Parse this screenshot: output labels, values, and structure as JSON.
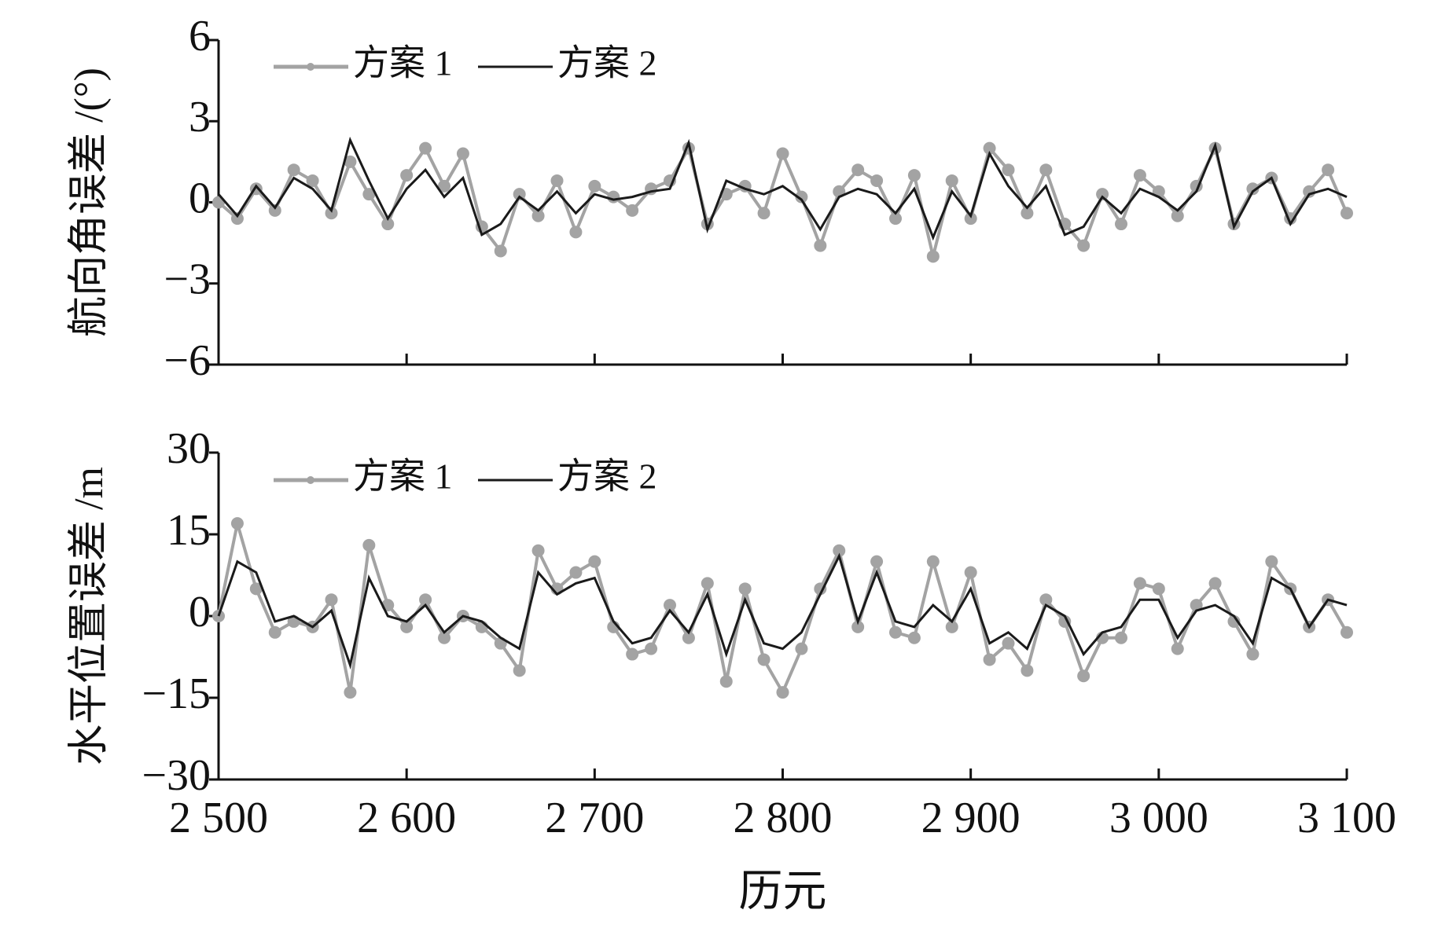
{
  "chart_data": [
    {
      "type": "line",
      "ylabel": "航向角误差 /(°)",
      "x": [
        2500,
        2510,
        2520,
        2530,
        2540,
        2550,
        2560,
        2570,
        2580,
        2590,
        2600,
        2610,
        2620,
        2630,
        2640,
        2650,
        2660,
        2670,
        2680,
        2690,
        2700,
        2710,
        2720,
        2730,
        2740,
        2750,
        2760,
        2770,
        2780,
        2790,
        2800,
        2810,
        2820,
        2830,
        2840,
        2850,
        2860,
        2870,
        2880,
        2890,
        2900,
        2910,
        2920,
        2930,
        2940,
        2950,
        2960,
        2970,
        2980,
        2990,
        3000,
        3010,
        3020,
        3030,
        3040,
        3050,
        3060,
        3070,
        3080,
        3090,
        3100
      ],
      "series": [
        {
          "name": "方案 1",
          "color": "#a3a3a3",
          "marker": true,
          "values": [
            0,
            -0.6,
            0.5,
            -0.3,
            1.2,
            0.8,
            -0.4,
            1.5,
            0.3,
            -0.8,
            1.0,
            2.0,
            0.6,
            1.8,
            -0.9,
            -1.8,
            0.3,
            -0.5,
            0.8,
            -1.1,
            0.6,
            0.2,
            -0.3,
            0.5,
            0.8,
            2.0,
            -0.8,
            0.3,
            0.6,
            -0.4,
            1.8,
            0.2,
            -1.6,
            0.4,
            1.2,
            0.8,
            -0.6,
            1.0,
            -2.0,
            0.8,
            -0.6,
            2.0,
            1.2,
            -0.4,
            1.2,
            -0.8,
            -1.6,
            0.3,
            -0.8,
            1.0,
            0.4,
            -0.5,
            0.6,
            2.0,
            -0.8,
            0.5,
            0.9,
            -0.6,
            0.4,
            1.2,
            -0.4
          ]
        },
        {
          "name": "方案 2",
          "color": "#1a1a1a",
          "marker": false,
          "values": [
            0.3,
            -0.5,
            0.6,
            -0.2,
            0.9,
            0.5,
            -0.3,
            2.3,
            0.8,
            -0.6,
            0.5,
            1.2,
            0.2,
            0.9,
            -1.2,
            -0.8,
            0.2,
            -0.3,
            0.4,
            -0.4,
            0.3,
            0.1,
            0.2,
            0.4,
            0.5,
            2.2,
            -1.0,
            0.8,
            0.5,
            0.3,
            0.6,
            0.1,
            -1.0,
            0.2,
            0.5,
            0.3,
            -0.4,
            0.5,
            -1.3,
            0.4,
            -0.5,
            1.8,
            0.6,
            -0.2,
            0.6,
            -1.2,
            -0.9,
            0.2,
            -0.4,
            0.5,
            0.2,
            -0.3,
            0.4,
            2.1,
            -0.9,
            0.4,
            0.9,
            -0.8,
            0.3,
            0.5,
            0.2
          ]
        }
      ],
      "xlim": [
        2500,
        3100
      ],
      "xticks": [
        2500,
        2600,
        2700,
        2800,
        2900,
        3000,
        3100
      ],
      "ylim": [
        -6,
        6
      ],
      "yticks": [
        {
          "value": -6,
          "label": "−6"
        },
        {
          "value": -3,
          "label": "−3"
        },
        0,
        3,
        6
      ],
      "legend": "upper left"
    },
    {
      "type": "line",
      "ylabel": "水平位置误差 /m",
      "xlabel": "历元",
      "x": [
        2500,
        2510,
        2520,
        2530,
        2540,
        2550,
        2560,
        2570,
        2580,
        2590,
        2600,
        2610,
        2620,
        2630,
        2640,
        2650,
        2660,
        2670,
        2680,
        2690,
        2700,
        2710,
        2720,
        2730,
        2740,
        2750,
        2760,
        2770,
        2780,
        2790,
        2800,
        2810,
        2820,
        2830,
        2840,
        2850,
        2860,
        2870,
        2880,
        2890,
        2900,
        2910,
        2920,
        2930,
        2940,
        2950,
        2960,
        2970,
        2980,
        2990,
        3000,
        3010,
        3020,
        3030,
        3040,
        3050,
        3060,
        3070,
        3080,
        3090,
        3100
      ],
      "series": [
        {
          "name": "方案 1",
          "color": "#a3a3a3",
          "marker": true,
          "values": [
            0,
            17,
            5,
            -3,
            -1,
            -2,
            3,
            -14,
            13,
            2,
            -2,
            3,
            -4,
            0,
            -2,
            -5,
            -10,
            12,
            5,
            8,
            10,
            -2,
            -7,
            -6,
            2,
            -4,
            6,
            -12,
            5,
            -8,
            -14,
            -6,
            5,
            12,
            -2,
            10,
            -3,
            -4,
            10,
            -2,
            8,
            -8,
            -5,
            -10,
            3,
            -1,
            -11,
            -4,
            -4,
            6,
            5,
            -6,
            2,
            6,
            -1,
            -7,
            10,
            5,
            -2,
            3,
            -3
          ]
        },
        {
          "name": "方案 2",
          "color": "#1a1a1a",
          "marker": false,
          "values": [
            0,
            10,
            8,
            -1,
            0,
            -2,
            1,
            -9,
            7,
            0,
            -1,
            2,
            -3,
            0,
            -1,
            -4,
            -6,
            8,
            4,
            6,
            7,
            -1,
            -5,
            -4,
            1,
            -3,
            4,
            -7,
            3,
            -5,
            -6,
            -3,
            4,
            11,
            -1,
            8,
            -1,
            -2,
            2,
            -1,
            5,
            -5,
            -3,
            -6,
            2,
            0,
            -7,
            -3,
            -2,
            3,
            3,
            -4,
            1,
            2,
            0,
            -5,
            7,
            5,
            -2,
            3,
            2
          ]
        }
      ],
      "xlim": [
        2500,
        3100
      ],
      "xticks": [
        {
          "value": 2500,
          "label": "2 500"
        },
        {
          "value": 2600,
          "label": "2 600"
        },
        {
          "value": 2700,
          "label": "2 700"
        },
        {
          "value": 2800,
          "label": "2 800"
        },
        {
          "value": 2900,
          "label": "2 900"
        },
        {
          "value": 3000,
          "label": "3 000"
        },
        {
          "value": 3100,
          "label": "3 100"
        }
      ],
      "ylim": [
        -30,
        30
      ],
      "yticks": [
        {
          "value": -30,
          "label": "−30"
        },
        {
          "value": -15,
          "label": "−15"
        },
        0,
        15,
        30
      ],
      "legend": "upper left"
    }
  ]
}
